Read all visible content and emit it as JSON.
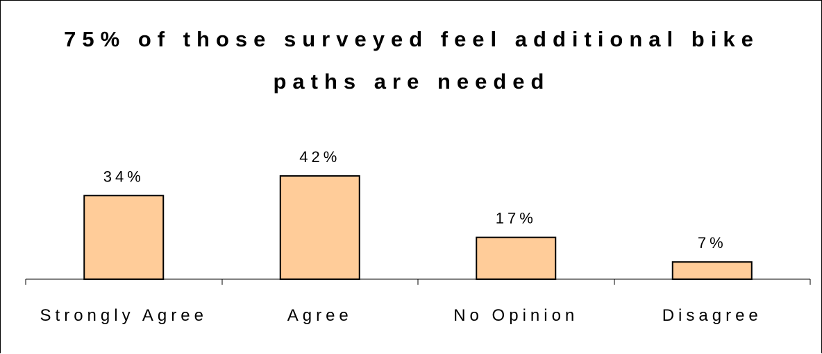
{
  "chart_data": {
    "type": "bar",
    "title_lines": [
      "75% of those surveyed feel additional bike",
      "paths are needed"
    ],
    "categories": [
      "Strongly Agree",
      "Agree",
      "No Opinion",
      "Disagree"
    ],
    "values": [
      34,
      42,
      17,
      7
    ],
    "value_labels": [
      "34%",
      "42%",
      "17%",
      "7%"
    ],
    "xlabel": "",
    "ylabel": "",
    "ylim": [
      0,
      60
    ],
    "grid": false,
    "legend": "none",
    "bar_color": "#FFCC99",
    "bar_edge_color": "#000000"
  }
}
